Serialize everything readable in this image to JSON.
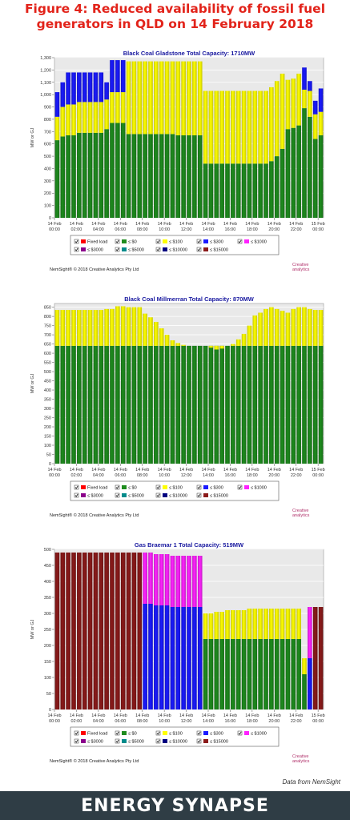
{
  "figure_title": "Figure 4: Reduced availability of fossil fuel generators in QLD on 14 February 2018",
  "source_note": "Data from NemSight",
  "brand": "ENERGY SYNAPSE",
  "copyright": "NemSight® © 2018 Creative Analytics Pty Ltd",
  "logo_text": [
    "Creative",
    "analytics"
  ],
  "x_ticks": [
    {
      "date": "14 Feb",
      "time": "00:00",
      "i": 0
    },
    {
      "date": "14 Feb",
      "time": "02:00",
      "i": 4
    },
    {
      "date": "14 Feb",
      "time": "04:00",
      "i": 8
    },
    {
      "date": "14 Feb",
      "time": "06:00",
      "i": 12
    },
    {
      "date": "14 Feb",
      "time": "08:00",
      "i": 16
    },
    {
      "date": "14 Feb",
      "time": "10:00",
      "i": 20
    },
    {
      "date": "14 Feb",
      "time": "12:00",
      "i": 24
    },
    {
      "date": "14 Feb",
      "time": "14:00",
      "i": 28
    },
    {
      "date": "14 Feb",
      "time": "16:00",
      "i": 32
    },
    {
      "date": "14 Feb",
      "time": "18:00",
      "i": 36
    },
    {
      "date": "14 Feb",
      "time": "20:00",
      "i": 40
    },
    {
      "date": "14 Feb",
      "time": "22:00",
      "i": 44
    },
    {
      "date": "15 Feb",
      "time": "00:00",
      "i": 48
    }
  ],
  "legend": [
    {
      "label": "Fixed load",
      "color": "#ff0000"
    },
    {
      "label": "≤ $0",
      "color": "#1e8c1e"
    },
    {
      "label": "≤ $100",
      "color": "#ffff00"
    },
    {
      "label": "≤ $300",
      "color": "#1a1aff"
    },
    {
      "label": "≤ $1000",
      "color": "#ff22ff"
    },
    {
      "label": "≤ $3000",
      "color": "#8b008b"
    },
    {
      "label": "≤ $5000",
      "color": "#008b8b"
    },
    {
      "label": "≤ $10000",
      "color": "#000080"
    },
    {
      "label": "≤ $15000",
      "color": "#8b1a1a"
    }
  ],
  "chart_data": [
    {
      "type": "bar",
      "title": "Black Coal Gladstone Total Capacity: 1710MW",
      "ylabel": "MW or GJ",
      "ylim": [
        0,
        1300
      ],
      "yticks": [
        0,
        100,
        200,
        300,
        400,
        500,
        600,
        700,
        800,
        900,
        1000,
        1100,
        1200,
        1300
      ],
      "grid": "horizontal",
      "legend_position": "bottom",
      "series": [
        {
          "name": "≤ $0",
          "color": "#1e8c1e",
          "values": [
            630,
            660,
            670,
            670,
            690,
            690,
            690,
            690,
            690,
            720,
            770,
            770,
            770,
            680,
            680,
            680,
            680,
            680,
            680,
            680,
            680,
            680,
            670,
            670,
            670,
            670,
            670,
            440,
            440,
            440,
            440,
            440,
            440,
            440,
            440,
            440,
            440,
            440,
            440,
            460,
            500,
            560,
            720,
            730,
            750,
            890,
            820,
            640,
            670
          ]
        },
        {
          "name": "≤ $100",
          "color": "#ffff00",
          "values": [
            190,
            240,
            250,
            250,
            250,
            250,
            250,
            250,
            250,
            240,
            250,
            250,
            250,
            590,
            590,
            590,
            590,
            590,
            590,
            590,
            590,
            590,
            600,
            600,
            600,
            600,
            600,
            590,
            590,
            590,
            590,
            590,
            590,
            590,
            590,
            590,
            590,
            590,
            590,
            600,
            610,
            610,
            400,
            400,
            420,
            150,
            210,
            200,
            190
          ]
        },
        {
          "name": "≤ $300",
          "color": "#1a1aff",
          "values": [
            200,
            200,
            260,
            260,
            240,
            240,
            240,
            240,
            240,
            140,
            260,
            260,
            260,
            0,
            0,
            0,
            0,
            0,
            0,
            0,
            0,
            0,
            0,
            0,
            0,
            0,
            0,
            0,
            0,
            0,
            0,
            0,
            0,
            0,
            0,
            0,
            0,
            0,
            0,
            0,
            0,
            0,
            0,
            0,
            0,
            180,
            80,
            110,
            190
          ]
        }
      ]
    },
    {
      "type": "bar",
      "title": "Black Coal Millmerran Total Capacity: 870MW",
      "ylabel": "MW or GJ",
      "ylim": [
        0,
        870
      ],
      "yticks": [
        0,
        50,
        100,
        150,
        200,
        250,
        300,
        350,
        400,
        450,
        500,
        550,
        600,
        650,
        700,
        750,
        800,
        850
      ],
      "grid": "horizontal",
      "legend_position": "bottom",
      "series": [
        {
          "name": "≤ $0",
          "color": "#1e8c1e",
          "values": [
            640,
            640,
            640,
            640,
            640,
            640,
            640,
            640,
            640,
            640,
            640,
            640,
            640,
            640,
            640,
            640,
            640,
            640,
            640,
            640,
            640,
            640,
            640,
            640,
            640,
            640,
            640,
            640,
            640,
            640,
            640,
            640,
            640,
            640,
            640,
            640,
            640,
            640,
            640,
            640,
            640,
            640,
            640,
            640,
            640,
            640,
            640,
            640,
            640
          ]
        },
        {
          "name": "≤ $100",
          "color": "#ffff00",
          "values": [
            195,
            195,
            195,
            195,
            195,
            195,
            195,
            195,
            195,
            200,
            200,
            215,
            215,
            210,
            210,
            210,
            175,
            155,
            130,
            95,
            60,
            30,
            15,
            5,
            0,
            0,
            0,
            0,
            -10,
            -20,
            -15,
            0,
            10,
            35,
            65,
            110,
            165,
            180,
            200,
            210,
            200,
            190,
            180,
            200,
            210,
            210,
            200,
            195,
            195
          ]
        }
      ]
    },
    {
      "type": "bar",
      "title": "Gas Braemar 1 Total Capacity: 519MW",
      "ylabel": "MW or GJ",
      "ylim": [
        0,
        500
      ],
      "yticks": [
        0,
        50,
        100,
        150,
        200,
        250,
        300,
        350,
        400,
        450,
        500
      ],
      "grid": "horizontal",
      "legend_position": "bottom",
      "series": [
        {
          "name": "≤ $0",
          "color": "#1e8c1e",
          "values": [
            0,
            0,
            0,
            0,
            0,
            0,
            0,
            0,
            0,
            0,
            0,
            0,
            0,
            0,
            0,
            0,
            0,
            0,
            0,
            0,
            0,
            0,
            0,
            0,
            0,
            0,
            0,
            220,
            220,
            220,
            220,
            220,
            220,
            220,
            220,
            220,
            220,
            220,
            220,
            220,
            220,
            220,
            220,
            220,
            220,
            110,
            0,
            0,
            0
          ]
        },
        {
          "name": "≤ $100",
          "color": "#ffff00",
          "values": [
            0,
            0,
            0,
            0,
            0,
            0,
            0,
            0,
            0,
            0,
            0,
            0,
            0,
            0,
            0,
            0,
            0,
            0,
            0,
            0,
            0,
            0,
            0,
            0,
            0,
            0,
            0,
            80,
            80,
            85,
            85,
            90,
            90,
            90,
            90,
            95,
            95,
            95,
            95,
            95,
            95,
            95,
            95,
            95,
            95,
            50,
            0,
            0,
            0
          ]
        },
        {
          "name": "≤ $300",
          "color": "#1a1aff",
          "values": [
            0,
            0,
            0,
            0,
            0,
            0,
            0,
            0,
            0,
            0,
            0,
            0,
            0,
            0,
            0,
            0,
            330,
            330,
            325,
            325,
            325,
            320,
            320,
            320,
            320,
            320,
            320,
            0,
            0,
            0,
            0,
            0,
            0,
            0,
            0,
            0,
            0,
            0,
            0,
            0,
            0,
            0,
            0,
            0,
            0,
            0,
            160,
            0,
            0
          ]
        },
        {
          "name": "≤ $1000",
          "color": "#ff22ff",
          "values": [
            0,
            0,
            0,
            0,
            0,
            0,
            0,
            0,
            0,
            0,
            0,
            0,
            0,
            0,
            0,
            0,
            160,
            160,
            160,
            160,
            160,
            160,
            160,
            160,
            160,
            160,
            160,
            0,
            0,
            0,
            0,
            0,
            0,
            0,
            0,
            0,
            0,
            0,
            0,
            0,
            0,
            0,
            0,
            0,
            0,
            0,
            160,
            0,
            0
          ]
        },
        {
          "name": "≤ $15000",
          "color": "#8b1a1a",
          "values": [
            490,
            490,
            490,
            490,
            490,
            490,
            490,
            490,
            490,
            490,
            490,
            490,
            490,
            490,
            490,
            490,
            0,
            0,
            0,
            0,
            0,
            0,
            0,
            0,
            0,
            0,
            0,
            0,
            0,
            0,
            0,
            0,
            0,
            0,
            0,
            0,
            0,
            0,
            0,
            0,
            0,
            0,
            0,
            0,
            0,
            0,
            0,
            320,
            320
          ]
        }
      ]
    }
  ]
}
